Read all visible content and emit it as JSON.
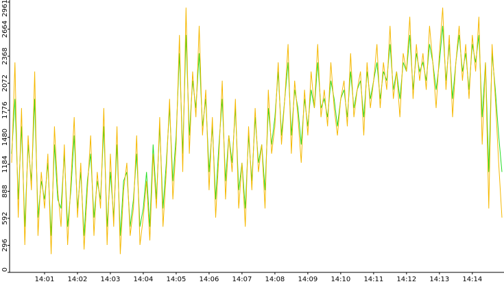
{
  "chart_data": {
    "type": "line",
    "categories": [
      null,
      null,
      null,
      null,
      null,
      null,
      null,
      null,
      null,
      null,
      "14:01",
      null,
      null,
      null,
      null,
      null,
      null,
      null,
      null,
      null,
      "14:02",
      null,
      null,
      null,
      null,
      null,
      null,
      null,
      null,
      null,
      "14:03",
      null,
      null,
      null,
      null,
      null,
      null,
      null,
      null,
      null,
      "14:04",
      null,
      null,
      null,
      null,
      null,
      null,
      null,
      null,
      null,
      "14:05",
      null,
      null,
      null,
      null,
      null,
      null,
      null,
      null,
      null,
      "14:06",
      null,
      null,
      null,
      null,
      null,
      null,
      null,
      null,
      null,
      "14:07",
      null,
      null,
      null,
      null,
      null,
      null,
      null,
      null,
      null,
      "14:08",
      null,
      null,
      null,
      null,
      null,
      null,
      null,
      null,
      null,
      "14:09",
      null,
      null,
      null,
      null,
      null,
      null,
      null,
      null,
      null,
      "14:10",
      null,
      null,
      null,
      null,
      null,
      null,
      null,
      null,
      null,
      "14:11",
      null,
      null,
      null,
      null,
      null,
      null,
      null,
      null,
      null,
      "14:12",
      null,
      null,
      null,
      null,
      null,
      null,
      null,
      null,
      null,
      "14:13",
      null,
      null,
      null,
      null,
      null,
      null,
      null,
      null,
      null,
      "14:14",
      null,
      null,
      null,
      null,
      null,
      null,
      null,
      null,
      null
    ],
    "series": [
      {
        "color": "#22dd22",
        "values": [
          1300,
          1900,
          800,
          1600,
          500,
          1400,
          1000,
          1900,
          600,
          1000,
          800,
          1200,
          400,
          1400,
          800,
          700,
          1300,
          500,
          900,
          1500,
          700,
          1100,
          400,
          1000,
          1300,
          600,
          1000,
          800,
          1600,
          500,
          1100,
          600,
          1400,
          400,
          1000,
          1100,
          500,
          800,
          1300,
          500,
          700,
          1100,
          500,
          1400,
          800,
          1600,
          700,
          1200,
          1800,
          1000,
          1500,
          2400,
          1300,
          2600,
          1500,
          2100,
          1800,
          2400,
          1600,
          1900,
          1100,
          1600,
          800,
          1400,
          1900,
          1000,
          1500,
          1200,
          1800,
          900,
          1200,
          700,
          1500,
          1000,
          1700,
          1200,
          1400,
          900,
          1800,
          1400,
          1700,
          2200,
          1500,
          1900,
          2300,
          1500,
          2000,
          1800,
          1400,
          1900,
          1600,
          2000,
          1800,
          2300,
          1800,
          1900,
          1700,
          2100,
          1900,
          1600,
          1900,
          2000,
          1700,
          2200,
          1800,
          2000,
          2100,
          1700,
          2200,
          1900,
          2100,
          2300,
          1900,
          2200,
          2100,
          2500,
          2000,
          2200,
          1900,
          2300,
          2200,
          2600,
          2000,
          2400,
          2200,
          2300,
          2100,
          2500,
          2300,
          2000,
          2300,
          2700,
          2100,
          2500,
          1900,
          2300,
          2600,
          2200,
          2400,
          2000,
          2500,
          2300,
          2600,
          1700,
          2300,
          1100,
          2400,
          2000,
          1500,
          1100
        ]
      },
      {
        "color": "#f5b800",
        "values": [
          1200,
          2300,
          600,
          1800,
          300,
          1500,
          900,
          2200,
          400,
          1100,
          700,
          1300,
          200,
          1600,
          900,
          500,
          1400,
          300,
          1000,
          1700,
          600,
          1200,
          250,
          900,
          1500,
          400,
          1100,
          700,
          1800,
          300,
          1300,
          500,
          1600,
          200,
          900,
          1200,
          400,
          700,
          1500,
          300,
          600,
          1000,
          350,
          1300,
          700,
          1700,
          500,
          1100,
          1900,
          800,
          1400,
          2600,
          1100,
          2900,
          1300,
          2200,
          1700,
          2700,
          1500,
          2000,
          900,
          1700,
          600,
          1300,
          2100,
          800,
          1500,
          1100,
          1900,
          700,
          1200,
          500,
          1600,
          900,
          1800,
          1100,
          1400,
          700,
          2000,
          1300,
          1600,
          2300,
          1400,
          1900,
          2500,
          1300,
          2100,
          1700,
          1200,
          2000,
          1500,
          2200,
          1800,
          2500,
          1700,
          2000,
          1600,
          2300,
          1800,
          1500,
          1900,
          2100,
          1600,
          2400,
          1700,
          2000,
          2200,
          1500,
          2300,
          1800,
          2100,
          2500,
          1800,
          2300,
          2000,
          2700,
          1900,
          2200,
          1700,
          2400,
          2200,
          2800,
          1900,
          2500,
          2100,
          2400,
          2000,
          2700,
          2300,
          1800,
          2400,
          2900,
          2000,
          2600,
          1700,
          2300,
          2700,
          2100,
          2500,
          1900,
          2600,
          2200,
          2800,
          1400,
          2300,
          700,
          2500,
          1900,
          1200,
          600
        ]
      }
    ],
    "ylim": [
      0,
      2961
    ],
    "yticks": [
      0,
      296,
      592,
      888,
      1184,
      1480,
      1776,
      2072,
      2368,
      2664,
      2961
    ]
  }
}
